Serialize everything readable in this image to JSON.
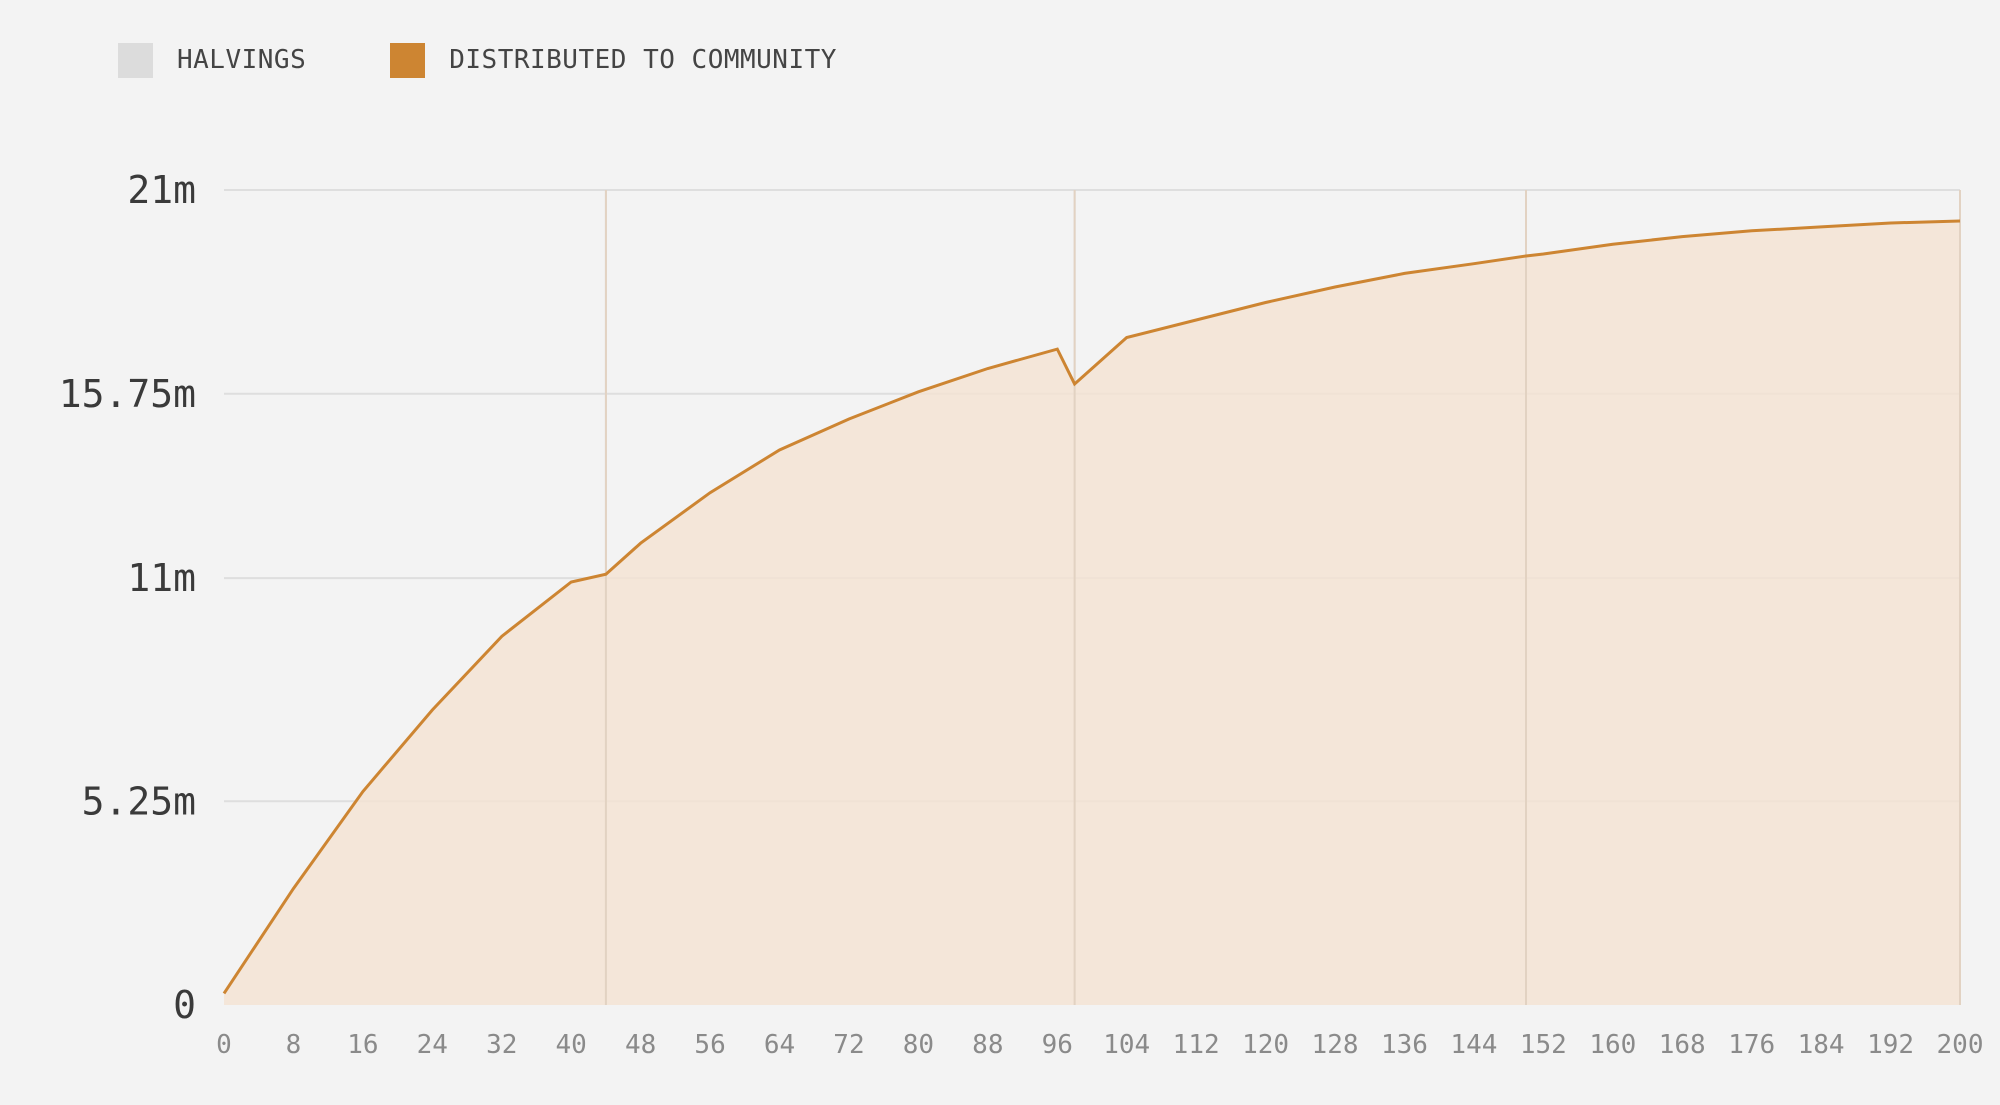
{
  "legend": [
    {
      "label": "HALVINGS",
      "color": "#dcdcdc"
    },
    {
      "label": "DISTRIBUTED TO COMMUNITY",
      "color": "#cd8532"
    }
  ],
  "chart_data": {
    "type": "area",
    "ylim": [
      0,
      21000000
    ],
    "xlim": [
      0,
      200
    ],
    "yticks": [
      {
        "value": 0,
        "label": "0"
      },
      {
        "value": 5250000,
        "label": "5.25m"
      },
      {
        "value": 11000000,
        "label": "11m"
      },
      {
        "value": 15750000,
        "label": "15.75m"
      },
      {
        "value": 21000000,
        "label": "21m"
      }
    ],
    "xticks": [
      "0",
      "8",
      "16",
      "24",
      "32",
      "40",
      "48",
      "56",
      "64",
      "72",
      "80",
      "88",
      "96",
      "104",
      "112",
      "120",
      "128",
      "136",
      "144",
      "152",
      "160",
      "168",
      "176",
      "184",
      "192",
      "200"
    ],
    "halvings": [
      44,
      98,
      150,
      200
    ],
    "series": [
      {
        "name": "DISTRIBUTED TO COMMUNITY",
        "color": "#cd8532",
        "fill": "#f3e3d3",
        "x": [
          0,
          8,
          16,
          24,
          32,
          40,
          44,
          48,
          56,
          64,
          72,
          80,
          88,
          96,
          98,
          104,
          112,
          120,
          128,
          136,
          144,
          150,
          152,
          160,
          168,
          176,
          184,
          192,
          200
        ],
        "y": [
          300000,
          3000000,
          5500000,
          7600000,
          9500000,
          10900000,
          11100000,
          11900000,
          13200000,
          14300000,
          15100000,
          15800000,
          16400000,
          16900000,
          16000000,
          17200000,
          17650000,
          18100000,
          18500000,
          18850000,
          19100000,
          19300000,
          19350000,
          19600000,
          19800000,
          19950000,
          20050000,
          20150000,
          20200000
        ]
      }
    ],
    "grid": true,
    "legend_position": "top-left"
  }
}
